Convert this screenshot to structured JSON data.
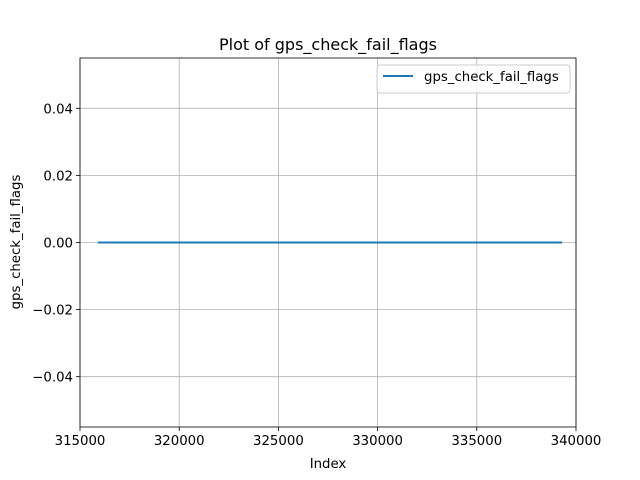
{
  "chart_data": {
    "type": "line",
    "title": "Plot of gps_check_fail_flags",
    "xlabel": "Index",
    "ylabel": "gps_check_fail_flags",
    "xlim": [
      315000,
      340000
    ],
    "ylim": [
      -0.055,
      0.055
    ],
    "xticks": [
      315000,
      320000,
      325000,
      330000,
      335000,
      340000
    ],
    "xtick_labels": [
      "315000",
      "320000",
      "325000",
      "330000",
      "335000",
      "340000"
    ],
    "yticks": [
      -0.04,
      -0.02,
      0.0,
      0.02,
      0.04
    ],
    "ytick_labels": [
      "−0.04",
      "−0.02",
      "0.00",
      "0.02",
      "0.04"
    ],
    "grid": true,
    "legend_position": "top-right",
    "colors": {
      "series": "#1f77b4",
      "grid": "#b0b0b0",
      "axes": "#000000"
    },
    "series": [
      {
        "name": "gps_check_fail_flags",
        "x": [
          315900,
          339300
        ],
        "y": [
          0,
          0
        ]
      }
    ]
  }
}
